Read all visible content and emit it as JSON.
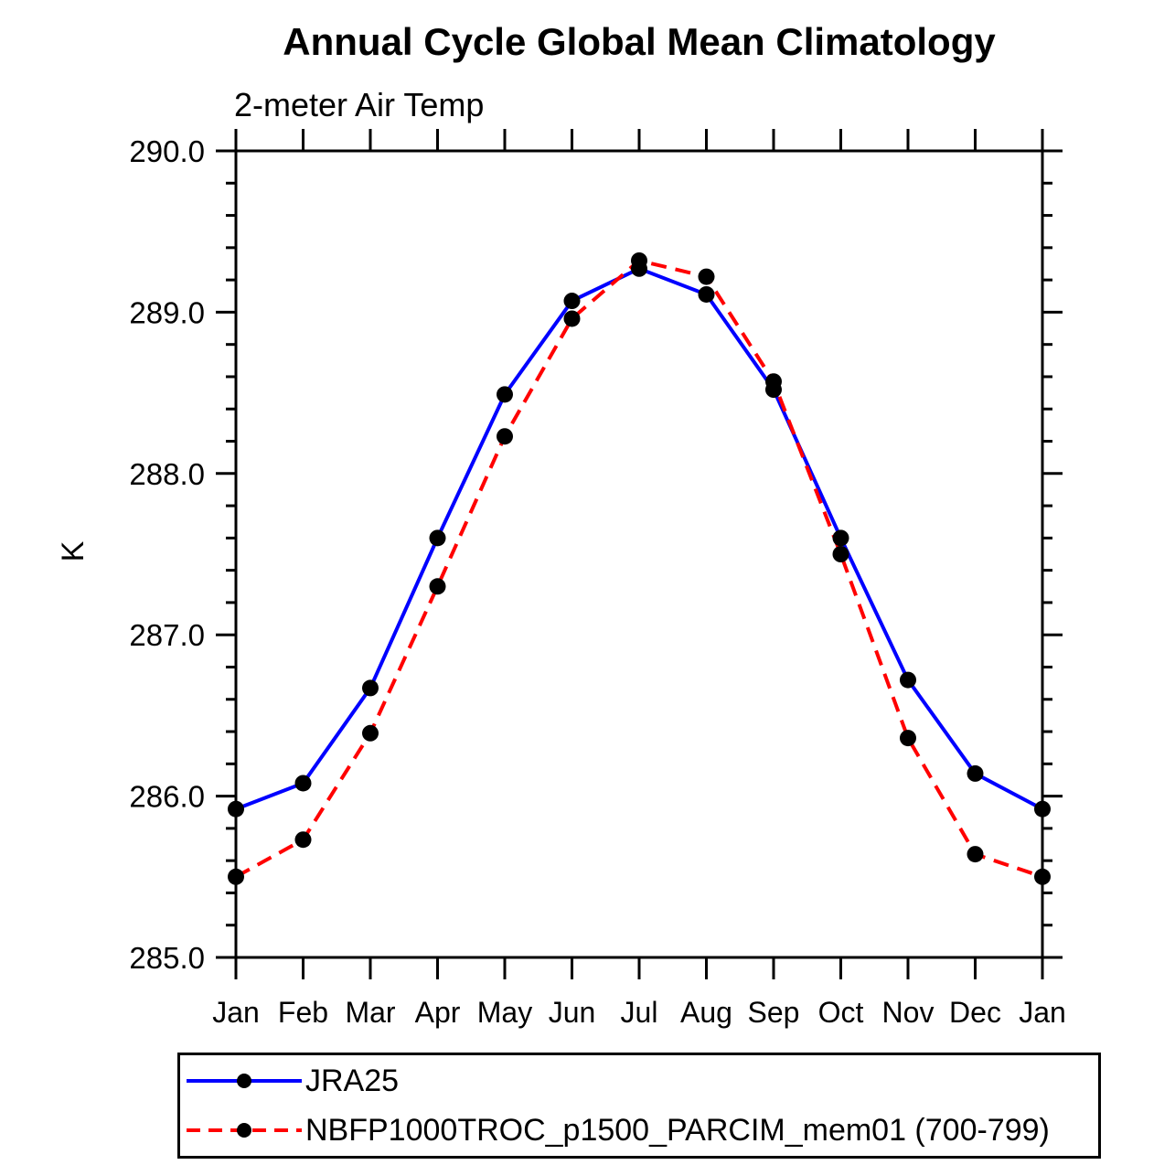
{
  "chart": {
    "title": "Annual Cycle Global Mean Climatology",
    "subtitle": "2-meter Air Temp",
    "ylabel": "K"
  },
  "chart_data": {
    "type": "line",
    "title": "Annual Cycle Global Mean Climatology",
    "subtitle": "2-meter Air Temp",
    "xlabel": "",
    "ylabel": "K",
    "categories": [
      "Jan",
      "Feb",
      "Mar",
      "Apr",
      "May",
      "Jun",
      "Jul",
      "Aug",
      "Sep",
      "Oct",
      "Nov",
      "Dec",
      "Jan"
    ],
    "ylim": [
      285.0,
      290.0
    ],
    "ytick_labels": [
      "285.0",
      "286.0",
      "287.0",
      "288.0",
      "289.0",
      "290.0"
    ],
    "ytick_major_values": [
      285.0,
      286.0,
      287.0,
      288.0,
      289.0,
      290.0
    ],
    "ytick_minor_step": 0.2,
    "grid": false,
    "frame": true,
    "tick_direction": "out",
    "legend_position": "bottom-left",
    "axis_color": "#000000",
    "marker_color": "#000000",
    "series": [
      {
        "name": "JRA25",
        "color": "#0000ff",
        "style": "solid",
        "marker": "circle",
        "values": [
          285.92,
          286.08,
          286.67,
          287.6,
          288.49,
          289.07,
          289.27,
          289.11,
          288.52,
          287.6,
          286.72,
          286.14,
          285.92
        ]
      },
      {
        "name": "NBFP1000TROC_p1500_PARCIM_mem01 (700-799)",
        "color": "#ff0000",
        "style": "dashed",
        "marker": "circle",
        "values": [
          285.5,
          285.73,
          286.39,
          287.3,
          288.23,
          288.96,
          289.32,
          289.22,
          288.57,
          287.5,
          286.36,
          285.64,
          285.5
        ]
      }
    ]
  }
}
